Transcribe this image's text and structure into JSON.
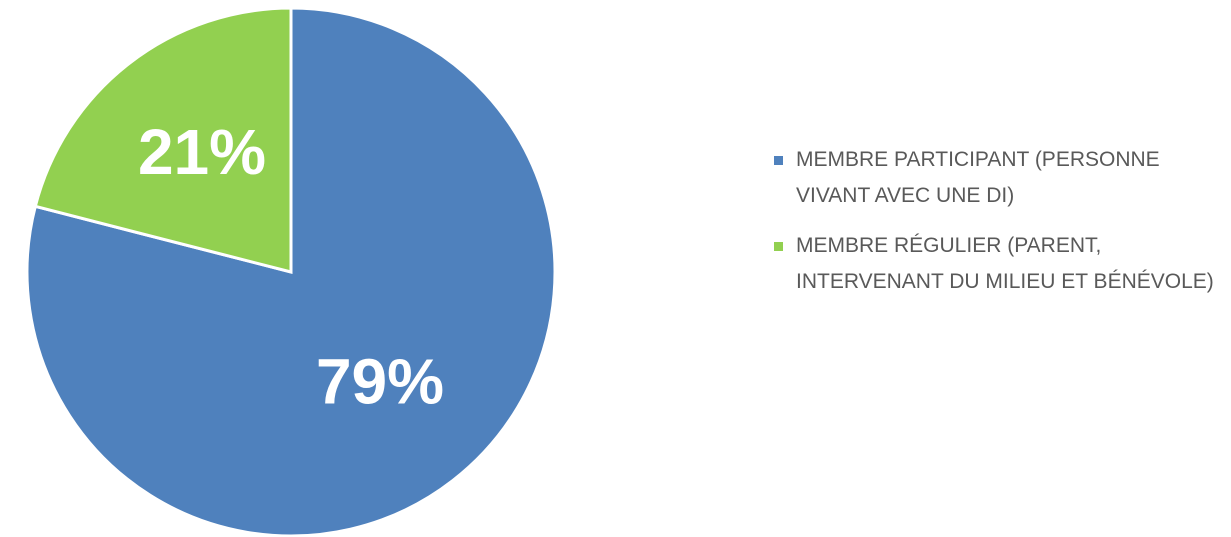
{
  "chart_data": {
    "type": "pie",
    "categories": [
      "MEMBRE PARTICIPANT (PERSONNE VIVANT AVEC UNE DI)",
      "MEMBRE RÉGULIER (PARENT, INTERVENANT DU MILIEU ET BÉNÉVOLE)"
    ],
    "values": [
      79,
      21
    ],
    "value_labels": [
      "79%",
      "21%"
    ],
    "colors": [
      "#4f81bd",
      "#92d050"
    ],
    "legend": "right"
  }
}
